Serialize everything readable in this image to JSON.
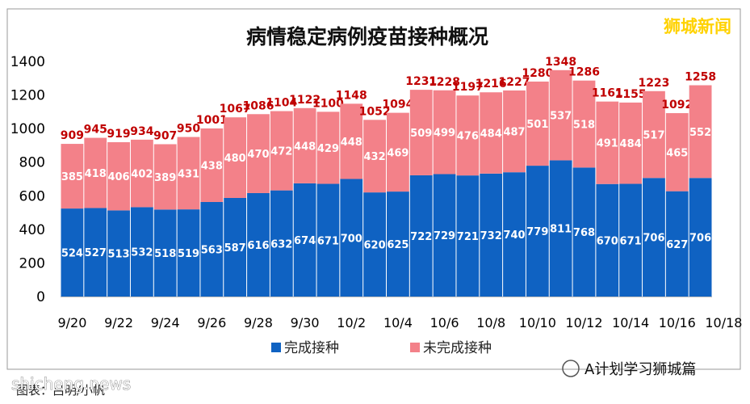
{
  "brand": "狮城新闻",
  "watermark_left": "shicheng.news",
  "watermark_right": "A计划学习狮城篇",
  "source_text": "图表：吕明/小帆",
  "chart_data": {
    "type": "bar",
    "stacked": true,
    "title": "病情稳定病例疫苗接种概况",
    "xlabel": "",
    "ylabel": "",
    "ylim": [
      0,
      1400
    ],
    "yticks": [
      "0",
      "200",
      "400",
      "600",
      "800",
      "1000",
      "1200",
      "1400"
    ],
    "x_tick_labels": [
      "9/20",
      "9/22",
      "9/24",
      "9/26",
      "9/28",
      "9/30",
      "10/2",
      "10/4",
      "10/6",
      "10/8",
      "10/10",
      "10/12",
      "10/14",
      "10/16",
      "10/18"
    ],
    "categories": [
      "9/20",
      "9/21",
      "9/22",
      "9/23",
      "9/24",
      "9/25",
      "9/26",
      "9/27",
      "9/28",
      "9/29",
      "9/30",
      "10/1",
      "10/2",
      "10/3",
      "10/4",
      "10/5",
      "10/6",
      "10/7",
      "10/8",
      "10/9",
      "10/10",
      "10/11",
      "10/12",
      "10/13",
      "10/14",
      "10/15",
      "10/16",
      "10/17"
    ],
    "series": [
      {
        "name": "完成接种",
        "color": "#0f62c2",
        "values": [
          524,
          527,
          513,
          532,
          518,
          519,
          563,
          587,
          616,
          632,
          674,
          671,
          700,
          620,
          625,
          722,
          729,
          721,
          732,
          740,
          779,
          811,
          768,
          670,
          671,
          706,
          627,
          706
        ]
      },
      {
        "name": "未完成接种",
        "color": "#f38189",
        "values": [
          385,
          418,
          406,
          402,
          389,
          431,
          438,
          480,
          470,
          472,
          448,
          429,
          448,
          432,
          469,
          509,
          499,
          476,
          484,
          487,
          501,
          537,
          518,
          491,
          484,
          517,
          465,
          552
        ]
      }
    ],
    "totals": [
      909,
      945,
      919,
      934,
      907,
      950,
      1001,
      1067,
      1086,
      1104,
      1122,
      1100,
      1148,
      1052,
      1094,
      1231,
      1228,
      1197,
      1216,
      1227,
      1280,
      1348,
      1286,
      1161,
      1155,
      1223,
      1092,
      1258
    ],
    "legend_position": "bottom",
    "grid": false
  }
}
